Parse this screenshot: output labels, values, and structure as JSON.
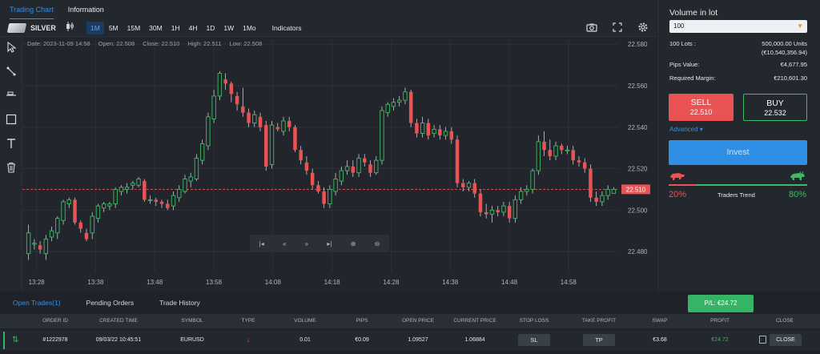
{
  "tabs": [
    "Trading Chart",
    "Information"
  ],
  "toolbar": {
    "symbol": "SILVER",
    "chart_type_icon": "candlestick-icon",
    "timeframes": [
      "1M",
      "5M",
      "15M",
      "30M",
      "1H",
      "4H",
      "1D",
      "1W",
      "1Mo"
    ],
    "active_timeframe": "1M",
    "indicators": "Indicators",
    "icons": [
      "camera-icon",
      "fullscreen-icon",
      "settings-icon"
    ]
  },
  "ohlc": {
    "date": "Date: 2023-11-09 14:58",
    "open": "Open: 22.508",
    "close": "Close: 22.510",
    "high": "High: 22.511",
    "low": "Low: 22.508"
  },
  "rail_tools": [
    "cursor-icon",
    "trendline-icon",
    "horizontal-line-icon",
    "rectangle-icon",
    "text-icon",
    "trash-icon"
  ],
  "nav_controls": [
    "|◂",
    "«",
    "»",
    "▸|",
    "⊕",
    "⊖"
  ],
  "chart_data": {
    "type": "candlestick",
    "y_ticks": [
      "22.580",
      "22.560",
      "22.540",
      "22.520",
      "22.500",
      "22.480"
    ],
    "y_range": [
      22.47,
      22.582
    ],
    "x_ticks": [
      "13:28",
      "13:38",
      "13:48",
      "13:58",
      "14:08",
      "14:18",
      "14:28",
      "14:38",
      "14:48",
      "14:58"
    ],
    "current_price_label": "22.510",
    "current_price": 22.51,
    "candles": [
      [
        22.479,
        22.489,
        22.476,
        22.493
      ],
      [
        22.484,
        22.484,
        22.481,
        22.486
      ],
      [
        22.483,
        22.481,
        22.479,
        22.485
      ],
      [
        22.479,
        22.486,
        22.476,
        22.488
      ],
      [
        22.487,
        22.49,
        22.485,
        22.492
      ],
      [
        22.489,
        22.496,
        22.486,
        22.497
      ],
      [
        22.495,
        22.504,
        22.493,
        22.505
      ],
      [
        22.503,
        22.505,
        22.501,
        22.506
      ],
      [
        22.505,
        22.494,
        22.493,
        22.506
      ],
      [
        22.494,
        22.491,
        22.489,
        22.495
      ],
      [
        22.489,
        22.486,
        22.485,
        22.491
      ],
      [
        22.489,
        22.497,
        22.486,
        22.499
      ],
      [
        22.496,
        22.502,
        22.494,
        22.503
      ],
      [
        22.501,
        22.503,
        22.499,
        22.504
      ],
      [
        22.502,
        22.503,
        22.5,
        22.504
      ],
      [
        22.503,
        22.51,
        22.501,
        22.511
      ],
      [
        22.509,
        22.511,
        22.507,
        22.512
      ],
      [
        22.51,
        22.511,
        22.508,
        22.513
      ],
      [
        22.512,
        22.513,
        22.51,
        22.514
      ],
      [
        22.512,
        22.515,
        22.511,
        22.516
      ],
      [
        22.514,
        22.505,
        22.504,
        22.515
      ],
      [
        22.505,
        22.505,
        22.503,
        22.507
      ],
      [
        22.505,
        22.504,
        22.502,
        22.506
      ],
      [
        22.504,
        22.503,
        22.501,
        22.505
      ],
      [
        22.503,
        22.501,
        22.5,
        22.505
      ],
      [
        22.502,
        22.507,
        22.5,
        22.509
      ],
      [
        22.506,
        22.51,
        22.504,
        22.512
      ],
      [
        22.509,
        22.515,
        22.508,
        22.517
      ],
      [
        22.514,
        22.516,
        22.511,
        22.518
      ],
      [
        22.515,
        22.525,
        22.514,
        22.527
      ],
      [
        22.524,
        22.532,
        22.522,
        22.534
      ],
      [
        22.531,
        22.545,
        22.529,
        22.547
      ],
      [
        22.544,
        22.555,
        22.542,
        22.558
      ],
      [
        22.555,
        22.566,
        22.553,
        22.567
      ],
      [
        22.563,
        22.561,
        22.558,
        22.566
      ],
      [
        22.561,
        22.556,
        22.552,
        22.562
      ],
      [
        22.555,
        22.551,
        22.548,
        22.557
      ],
      [
        22.55,
        22.547,
        22.545,
        22.559
      ],
      [
        22.547,
        22.542,
        22.54,
        22.549
      ],
      [
        22.542,
        22.546,
        22.54,
        22.548
      ],
      [
        22.545,
        22.54,
        22.538,
        22.547
      ],
      [
        22.541,
        22.521,
        22.519,
        22.543
      ],
      [
        22.522,
        22.541,
        22.52,
        22.543
      ],
      [
        22.54,
        22.539,
        22.538,
        22.542
      ],
      [
        22.538,
        22.543,
        22.536,
        22.545
      ],
      [
        22.543,
        22.54,
        22.538,
        22.545
      ],
      [
        22.54,
        22.529,
        22.528,
        22.541
      ],
      [
        22.529,
        22.524,
        22.522,
        22.531
      ],
      [
        22.523,
        22.519,
        22.517,
        22.526
      ],
      [
        22.518,
        22.512,
        22.51,
        22.52
      ],
      [
        22.512,
        22.509,
        22.508,
        22.514
      ],
      [
        22.509,
        22.503,
        22.501,
        22.511
      ],
      [
        22.503,
        22.51,
        22.501,
        22.512
      ],
      [
        22.509,
        22.515,
        22.507,
        22.518
      ],
      [
        22.514,
        22.519,
        22.512,
        22.521
      ],
      [
        22.519,
        22.521,
        22.517,
        22.524
      ],
      [
        22.521,
        22.518,
        22.516,
        22.524
      ],
      [
        22.518,
        22.525,
        22.516,
        22.527
      ],
      [
        22.525,
        22.523,
        22.521,
        22.527
      ],
      [
        22.522,
        22.518,
        22.516,
        22.524
      ],
      [
        22.518,
        22.524,
        22.517,
        22.526
      ],
      [
        22.524,
        22.548,
        22.522,
        22.55
      ],
      [
        22.547,
        22.551,
        22.545,
        22.552
      ],
      [
        22.55,
        22.552,
        22.548,
        22.554
      ],
      [
        22.552,
        22.553,
        22.55,
        22.555
      ],
      [
        22.553,
        22.557,
        22.551,
        22.559
      ],
      [
        22.557,
        22.542,
        22.54,
        22.558
      ],
      [
        22.542,
        22.537,
        22.535,
        22.544
      ],
      [
        22.537,
        22.542,
        22.535,
        22.545
      ],
      [
        22.542,
        22.536,
        22.534,
        22.544
      ],
      [
        22.537,
        22.539,
        22.535,
        22.541
      ],
      [
        22.539,
        22.536,
        22.534,
        22.541
      ],
      [
        22.536,
        22.538,
        22.534,
        22.54
      ],
      [
        22.538,
        22.534,
        22.532,
        22.54
      ],
      [
        22.534,
        22.513,
        22.511,
        22.536
      ],
      [
        22.513,
        22.511,
        22.509,
        22.515
      ],
      [
        22.511,
        22.513,
        22.509,
        22.514
      ],
      [
        22.513,
        22.508,
        22.506,
        22.515
      ],
      [
        22.508,
        22.499,
        22.497,
        22.51
      ],
      [
        22.499,
        22.498,
        22.496,
        22.503
      ],
      [
        22.498,
        22.5,
        22.494,
        22.502
      ],
      [
        22.5,
        22.499,
        22.497,
        22.502
      ],
      [
        22.499,
        22.502,
        22.497,
        22.504
      ],
      [
        22.502,
        22.496,
        22.494,
        22.504
      ],
      [
        22.496,
        22.505,
        22.494,
        22.507
      ],
      [
        22.505,
        22.509,
        22.503,
        22.511
      ],
      [
        22.509,
        22.51,
        22.507,
        22.512
      ],
      [
        22.51,
        22.519,
        22.508,
        22.52
      ],
      [
        22.519,
        22.533,
        22.517,
        22.536
      ],
      [
        22.533,
        22.529,
        22.526,
        22.538
      ],
      [
        22.529,
        22.526,
        22.524,
        22.534
      ],
      [
        22.526,
        22.531,
        22.524,
        22.533
      ],
      [
        22.531,
        22.529,
        22.527,
        22.532
      ],
      [
        22.529,
        22.529,
        22.527,
        22.531
      ],
      [
        22.529,
        22.524,
        22.522,
        22.531
      ],
      [
        22.524,
        22.523,
        22.521,
        22.526
      ],
      [
        22.523,
        22.52,
        22.518,
        22.525
      ],
      [
        22.52,
        22.506,
        22.504,
        22.522
      ],
      [
        22.506,
        22.504,
        22.502,
        22.509
      ],
      [
        22.504,
        22.507,
        22.502,
        22.509
      ],
      [
        22.507,
        22.51,
        22.505,
        22.512
      ],
      [
        22.508,
        22.51,
        22.508,
        22.511
      ]
    ]
  },
  "panel": {
    "title": "Volume in lot",
    "volume_value": "100",
    "lots_label": "100 Lots :",
    "lots_units": "500,000.00 Units",
    "lots_eur": "(€10,540,356.94)",
    "pips_label": "Pips Value:",
    "pips_value": "€4,677.95",
    "margin_label": "Required Margin:",
    "margin_value": "€210,601.30",
    "sell_label": "SELL",
    "sell_price": "22.510",
    "buy_label": "BUY",
    "buy_price": "22.532",
    "advanced": "Advanced ▾",
    "invest": "Invest",
    "bear_pct": "20%",
    "bull_pct": "80%",
    "trend_label": "Traders Trend",
    "colors": {
      "sell": "#e95353",
      "buy": "#3dba64",
      "invest": "#2e8fe5"
    }
  },
  "bottom": {
    "tabs": [
      "Open Trades(1)",
      "Pending Orders",
      "Trade History"
    ],
    "pl_badge": "P/L: €24.72",
    "columns": [
      "ORDER ID",
      "CREATED TIME",
      "SYMBOL",
      "TYPE",
      "VOLUME",
      "PIPS",
      "OPEN PRICE",
      "CURRENT PRICE",
      "STOP LOSS",
      "TAKE PROFIT",
      "SWAP",
      "PROFIT",
      "CLOSE"
    ],
    "rows": [
      {
        "order_id": "#1222978",
        "created": "09/03/22 10:45:51",
        "symbol": "EURUSD",
        "type": "↓",
        "volume": "0.01",
        "pips": "€0.09",
        "open_price": "1.09527",
        "current_price": "1.06884",
        "stop_loss": "SL",
        "take_profit": "TP",
        "swap": "€3.68",
        "profit": "€24.72",
        "close": "CLOSE"
      }
    ]
  }
}
